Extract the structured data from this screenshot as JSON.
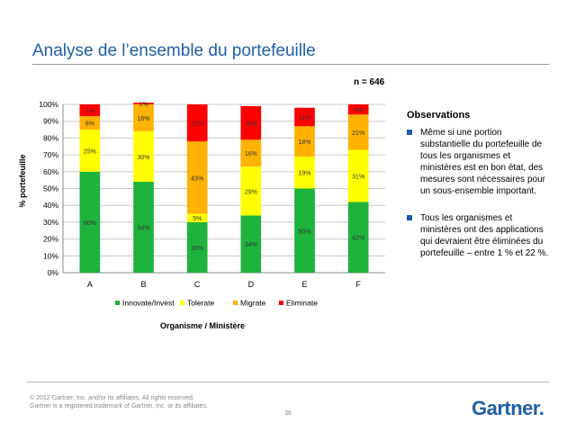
{
  "slide": {
    "title": "Analyse de l’ensemble du portefeuille",
    "n_label": "n = 646",
    "page_number": "36",
    "footer": {
      "copyright": "© 2012 Gartner, Inc. and/or its affiliates. All rights reserved.",
      "trademark": "Gartner is a registered trademark of Gartner, Inc. or its affiliates.",
      "logo": "Gartner",
      "logo_dot": "."
    }
  },
  "observations": {
    "title": "Observations",
    "items": [
      "Même si une portion substantielle du portefeuille de tous les organismes et ministères est en bon état, des mesures sont nécessaires pour un sous-ensemble important.",
      "Tous les organismes et ministères ont des applications qui devraient être éliminées du portefeuille – entre 1 % et 22 %."
    ]
  },
  "chart_data": {
    "type": "bar",
    "stacked": true,
    "categories": [
      "A",
      "B",
      "C",
      "D",
      "E",
      "F"
    ],
    "series": [
      {
        "name": "Innovate/Invest",
        "color": "#1db33d",
        "values": [
          60,
          54,
          30,
          34,
          50,
          42
        ],
        "labels": [
          "60%",
          "54%",
          "30%",
          "34%",
          "50%",
          "42%"
        ]
      },
      {
        "name": "Tolerate",
        "color": "#ffff00",
        "values": [
          25,
          30,
          5,
          29,
          19,
          31
        ],
        "labels": [
          "25%",
          "30%",
          "5%",
          "29%",
          "19%",
          "31%"
        ]
      },
      {
        "name": "Migrate",
        "color": "#ffb300",
        "values": [
          8,
          16,
          43,
          16,
          18,
          21
        ],
        "labels": [
          "8%",
          "16%",
          "43%",
          "16%",
          "18%",
          "21%"
        ]
      },
      {
        "name": "Eliminate",
        "color": "#ff0000",
        "values": [
          7,
          1,
          22,
          20,
          11,
          6
        ],
        "labels": [
          "7%",
          "1%",
          "22%",
          "20%",
          "11%",
          "6%"
        ]
      }
    ],
    "ylim": [
      0,
      100
    ],
    "yticks": [
      "0%",
      "10%",
      "20%",
      "30%",
      "40%",
      "50%",
      "60%",
      "70%",
      "80%",
      "90%",
      "100%"
    ],
    "ylabel": "% portefeuille",
    "xlabel": "Organisme / Ministère",
    "grid": true,
    "legend_position": "bottom"
  }
}
